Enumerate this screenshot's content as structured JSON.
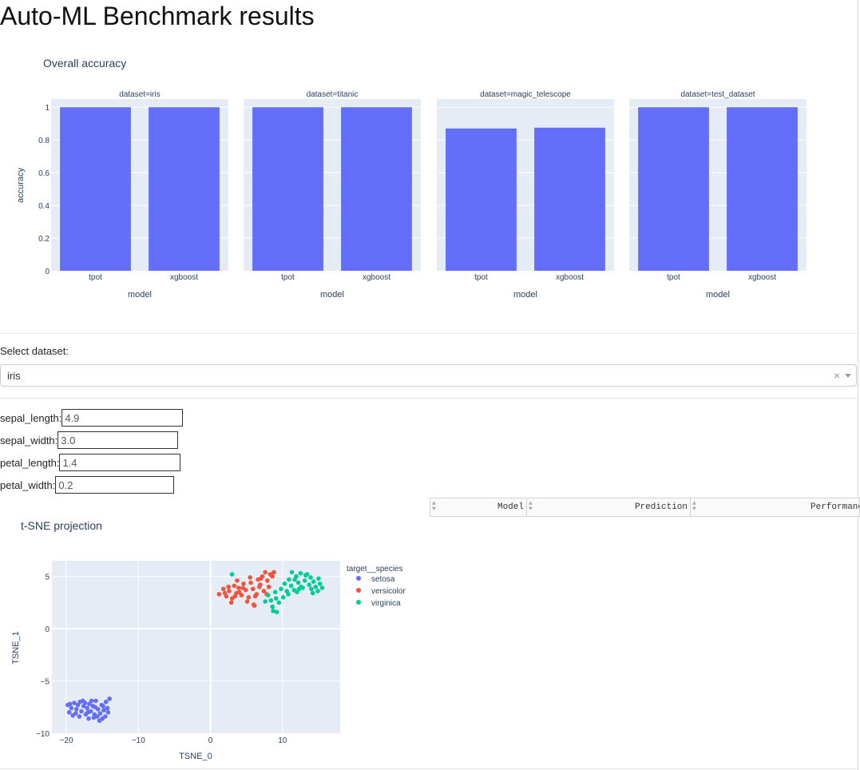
{
  "page": {
    "title": "Auto-ML Benchmark results"
  },
  "overall_chart": {
    "title": "Overall accuracy",
    "ylabel": "accuracy",
    "xlabel": "model",
    "yticks": [
      "0",
      "0.2",
      "0.4",
      "0.6",
      "0.8",
      "1"
    ],
    "bar_color": "#636efa"
  },
  "chart_data": [
    {
      "type": "bar",
      "title": "Overall accuracy",
      "xlabel": "model",
      "ylabel": "accuracy",
      "ylim": [
        0,
        1.05
      ],
      "facets": [
        {
          "label": "dataset=iris",
          "categories": [
            "tpot",
            "xgboost"
          ],
          "values": [
            1.0,
            1.0
          ]
        },
        {
          "label": "dataset=titanic",
          "categories": [
            "tpot",
            "xgboost"
          ],
          "values": [
            1.0,
            1.0
          ]
        },
        {
          "label": "dataset=magic_telescope",
          "categories": [
            "tpot",
            "xgboost"
          ],
          "values": [
            0.87,
            0.875
          ]
        },
        {
          "label": "dataset=test_dataset",
          "categories": [
            "tpot",
            "xgboost"
          ],
          "values": [
            1.0,
            1.0
          ]
        }
      ]
    },
    {
      "type": "scatter",
      "title": "t-SNE projection",
      "xlabel": "TSNE_0",
      "ylabel": "TSNE_1",
      "xlim": [
        -22,
        18
      ],
      "ylim": [
        -10,
        6.5
      ],
      "xticks": [
        "−20",
        "−10",
        "0",
        "10"
      ],
      "yticks": [
        "5",
        "0",
        "−5",
        "−10"
      ],
      "legend_title": "target__species",
      "series": [
        {
          "name": "setosa",
          "color": "#636efa",
          "points": [
            [
              -19.8,
              -7.3
            ],
            [
              -19.3,
              -7.6
            ],
            [
              -19.6,
              -8.0
            ],
            [
              -18.9,
              -7.1
            ],
            [
              -18.6,
              -7.7
            ],
            [
              -18.2,
              -8.4
            ],
            [
              -18.4,
              -7.3
            ],
            [
              -17.9,
              -7.9
            ],
            [
              -17.6,
              -7.4
            ],
            [
              -17.3,
              -8.2
            ],
            [
              -17.7,
              -6.9
            ],
            [
              -17.1,
              -7.6
            ],
            [
              -16.8,
              -7.2
            ],
            [
              -16.6,
              -7.9
            ],
            [
              -16.2,
              -8.5
            ],
            [
              -16.3,
              -7.4
            ],
            [
              -15.9,
              -6.9
            ],
            [
              -15.6,
              -7.7
            ],
            [
              -15.3,
              -8.1
            ],
            [
              -15.1,
              -7.3
            ],
            [
              -14.8,
              -7.8
            ],
            [
              -14.5,
              -7.0
            ],
            [
              -14.3,
              -7.6
            ],
            [
              -14.6,
              -8.4
            ],
            [
              -15.4,
              -8.8
            ],
            [
              -16.9,
              -8.6
            ],
            [
              -18.1,
              -7.0
            ],
            [
              -19.1,
              -8.3
            ],
            [
              -17.4,
              -7.1
            ],
            [
              -16.0,
              -7.5
            ],
            [
              -15.7,
              -8.4
            ],
            [
              -14.2,
              -8.0
            ],
            [
              -14.0,
              -6.7
            ],
            [
              -19.5,
              -7.2
            ],
            [
              -17.0,
              -8.0
            ],
            [
              -16.5,
              -6.9
            ],
            [
              -15.0,
              -8.6
            ],
            [
              -18.7,
              -8.1
            ],
            [
              -14.9,
              -7.4
            ],
            [
              -16.1,
              -8.2
            ]
          ]
        },
        {
          "name": "versicolor",
          "color": "#ef553b",
          "points": [
            [
              1.2,
              3.3
            ],
            [
              1.8,
              3.8
            ],
            [
              2.2,
              3.1
            ],
            [
              2.6,
              3.6
            ],
            [
              3.0,
              2.9
            ],
            [
              3.3,
              4.1
            ],
            [
              3.6,
              3.4
            ],
            [
              3.9,
              3.9
            ],
            [
              4.3,
              3.2
            ],
            [
              4.6,
              4.3
            ],
            [
              4.9,
              3.7
            ],
            [
              5.3,
              3.0
            ],
            [
              5.6,
              4.4
            ],
            [
              5.9,
              3.8
            ],
            [
              6.2,
              3.1
            ],
            [
              6.6,
              4.7
            ],
            [
              6.9,
              4.2
            ],
            [
              7.2,
              5.0
            ],
            [
              7.6,
              5.4
            ],
            [
              7.9,
              4.6
            ],
            [
              8.3,
              5.2
            ],
            [
              8.1,
              4.0
            ],
            [
              7.4,
              3.6
            ],
            [
              6.4,
              3.3
            ],
            [
              2.9,
              2.5
            ],
            [
              2.0,
              3.4
            ],
            [
              3.7,
              4.6
            ],
            [
              4.0,
              3.5
            ],
            [
              5.1,
              2.6
            ],
            [
              6.0,
              2.3
            ],
            [
              6.8,
              4.0
            ],
            [
              8.6,
              5.0
            ],
            [
              3.4,
              3.1
            ],
            [
              4.5,
              3.9
            ],
            [
              5.5,
              4.9
            ],
            [
              7.0,
              4.8
            ],
            [
              2.5,
              4.0
            ],
            [
              7.8,
              3.3
            ],
            [
              8.8,
              5.4
            ],
            [
              6.1,
              2.2
            ]
          ]
        },
        {
          "name": "virginica",
          "color": "#00cc96",
          "points": [
            [
              3.0,
              5.2
            ],
            [
              7.6,
              2.6
            ],
            [
              8.0,
              3.2
            ],
            [
              8.4,
              2.7
            ],
            [
              8.6,
              2.1
            ],
            [
              9.0,
              3.5
            ],
            [
              8.7,
              1.7
            ],
            [
              9.2,
              1.6
            ],
            [
              9.1,
              2.9
            ],
            [
              9.8,
              3.8
            ],
            [
              10.3,
              4.3
            ],
            [
              10.6,
              3.6
            ],
            [
              10.9,
              4.7
            ],
            [
              11.2,
              4.1
            ],
            [
              11.6,
              3.7
            ],
            [
              11.9,
              5.0
            ],
            [
              12.2,
              4.4
            ],
            [
              12.5,
              5.3
            ],
            [
              12.8,
              3.9
            ],
            [
              13.1,
              4.6
            ],
            [
              13.4,
              5.2
            ],
            [
              13.7,
              4.2
            ],
            [
              14.0,
              3.8
            ],
            [
              14.3,
              4.5
            ],
            [
              14.6,
              4.0
            ],
            [
              14.9,
              3.6
            ],
            [
              15.2,
              4.3
            ],
            [
              15.5,
              3.9
            ],
            [
              12.0,
              3.5
            ],
            [
              11.3,
              5.4
            ],
            [
              10.8,
              3.3
            ],
            [
              13.9,
              4.9
            ],
            [
              12.6,
              4.0
            ],
            [
              11.7,
              4.7
            ],
            [
              10.1,
              3.0
            ],
            [
              9.5,
              2.5
            ],
            [
              14.2,
              3.4
            ],
            [
              13.2,
              5.1
            ],
            [
              15.0,
              4.8
            ],
            [
              12.3,
              3.8
            ]
          ]
        }
      ]
    }
  ],
  "dataset_select": {
    "label": "Select dataset:",
    "value": "iris",
    "clear": "×"
  },
  "fields": [
    {
      "label": "sepal_length:",
      "value": "4.9"
    },
    {
      "label": "sepal_width:",
      "value": "3.0"
    },
    {
      "label": "petal_length:",
      "value": "1.4"
    },
    {
      "label": "petal_width:",
      "value": "0.2"
    }
  ],
  "table": {
    "columns": [
      "Model",
      "Prediction",
      "Performance"
    ]
  }
}
